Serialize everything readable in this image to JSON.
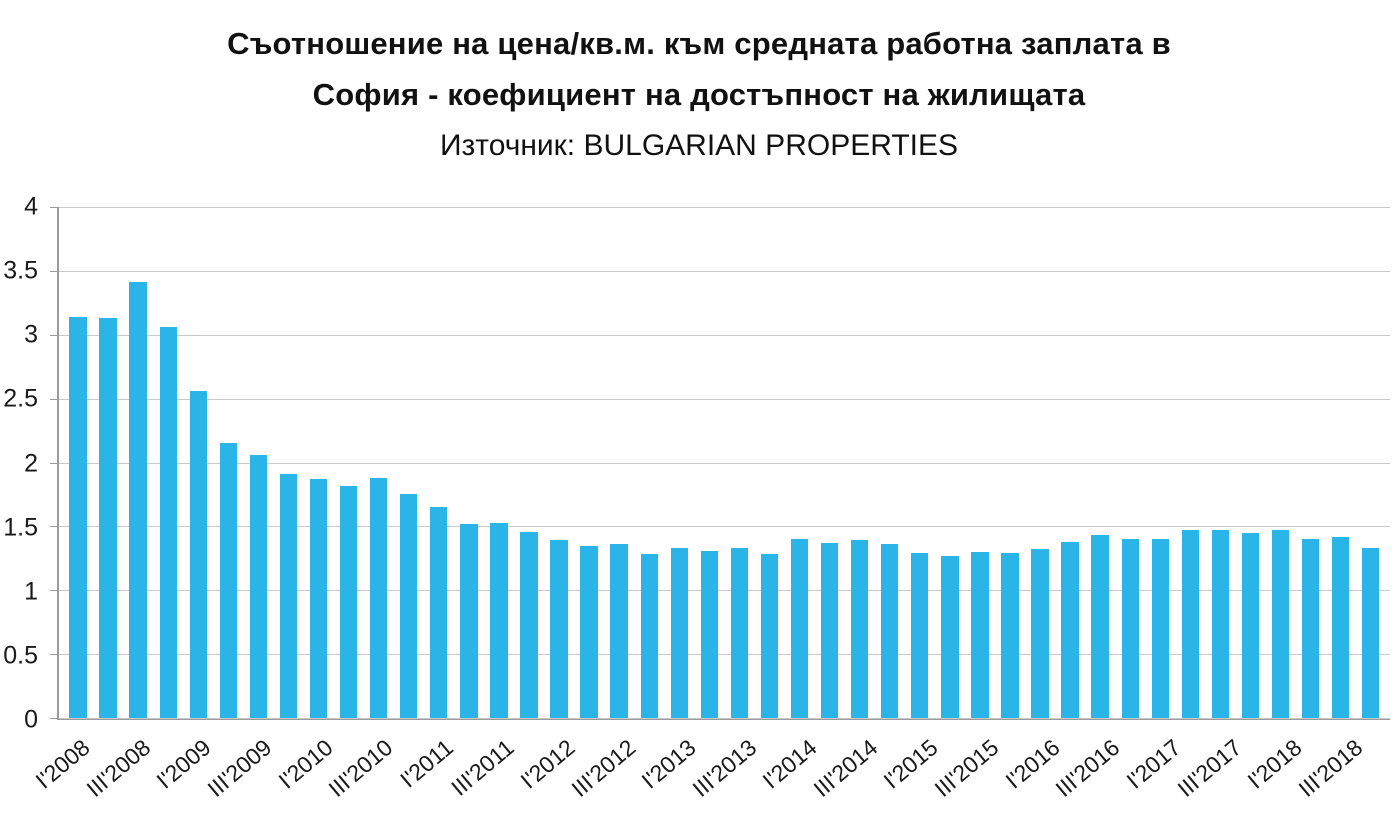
{
  "title_line1": "Съотношение на цена/кв.м. към средната работна заплата в",
  "title_line2": "София - коефициент на достъпност на жилищата",
  "subtitle": "Източник: BULGARIAN PROPERTIES",
  "chart_data": {
    "type": "bar",
    "title": "Съотношение на цена/кв.м. към средната работна заплата в София - коефициент на достъпност на жилищата",
    "subtitle": "Източник: BULGARIAN PROPERTIES",
    "xlabel": "",
    "ylabel": "",
    "ylim": [
      0,
      4
    ],
    "yticks": [
      0,
      0.5,
      1,
      1.5,
      2,
      2.5,
      3,
      3.5,
      4
    ],
    "grid": true,
    "legend": "none",
    "bar_color": "#2bb4e8",
    "x": [
      "I'2008",
      "II'2008",
      "III'2008",
      "IV'2008",
      "I'2009",
      "II'2009",
      "III'2009",
      "IV'2009",
      "I'2010",
      "II'2010",
      "III'2010",
      "IV'2010",
      "I'2011",
      "II'2011",
      "III'2011",
      "IV'2011",
      "I'2012",
      "II'2012",
      "III'2012",
      "IV'2012",
      "I'2013",
      "II'2013",
      "III'2013",
      "IV'2013",
      "I'2014",
      "II'2014",
      "III'2014",
      "IV'2014",
      "I'2015",
      "II'2015",
      "III'2015",
      "IV'2015",
      "I'2016",
      "II'2016",
      "III'2016",
      "IV'2016",
      "I'2017",
      "II'2017",
      "III'2017",
      "IV'2017",
      "I'2018",
      "II'2018",
      "III'2018",
      "IV'2018"
    ],
    "values": [
      3.14,
      3.13,
      3.41,
      3.06,
      2.56,
      2.15,
      2.06,
      1.91,
      1.87,
      1.82,
      1.88,
      1.75,
      1.65,
      1.52,
      1.53,
      1.46,
      1.39,
      1.35,
      1.36,
      1.28,
      1.33,
      1.31,
      1.33,
      1.28,
      1.4,
      1.37,
      1.39,
      1.36,
      1.29,
      1.27,
      1.3,
      1.29,
      1.32,
      1.38,
      1.43,
      1.4,
      1.4,
      1.47,
      1.47,
      1.45,
      1.47,
      1.4,
      1.42,
      1.33
    ],
    "xtick_labels": [
      "I'2008",
      "III'2008",
      "I'2009",
      "III'2009",
      "I'2010",
      "III'2010",
      "I'2011",
      "III'2011",
      "I'2012",
      "III'2012",
      "I'2013",
      "III'2013",
      "I'2014",
      "III'2014",
      "I'2015",
      "III'2015",
      "I'2016",
      "III'2016",
      "I'2017",
      "III'2017",
      "I'2018",
      "III'2018"
    ],
    "xtick_every": 2
  }
}
